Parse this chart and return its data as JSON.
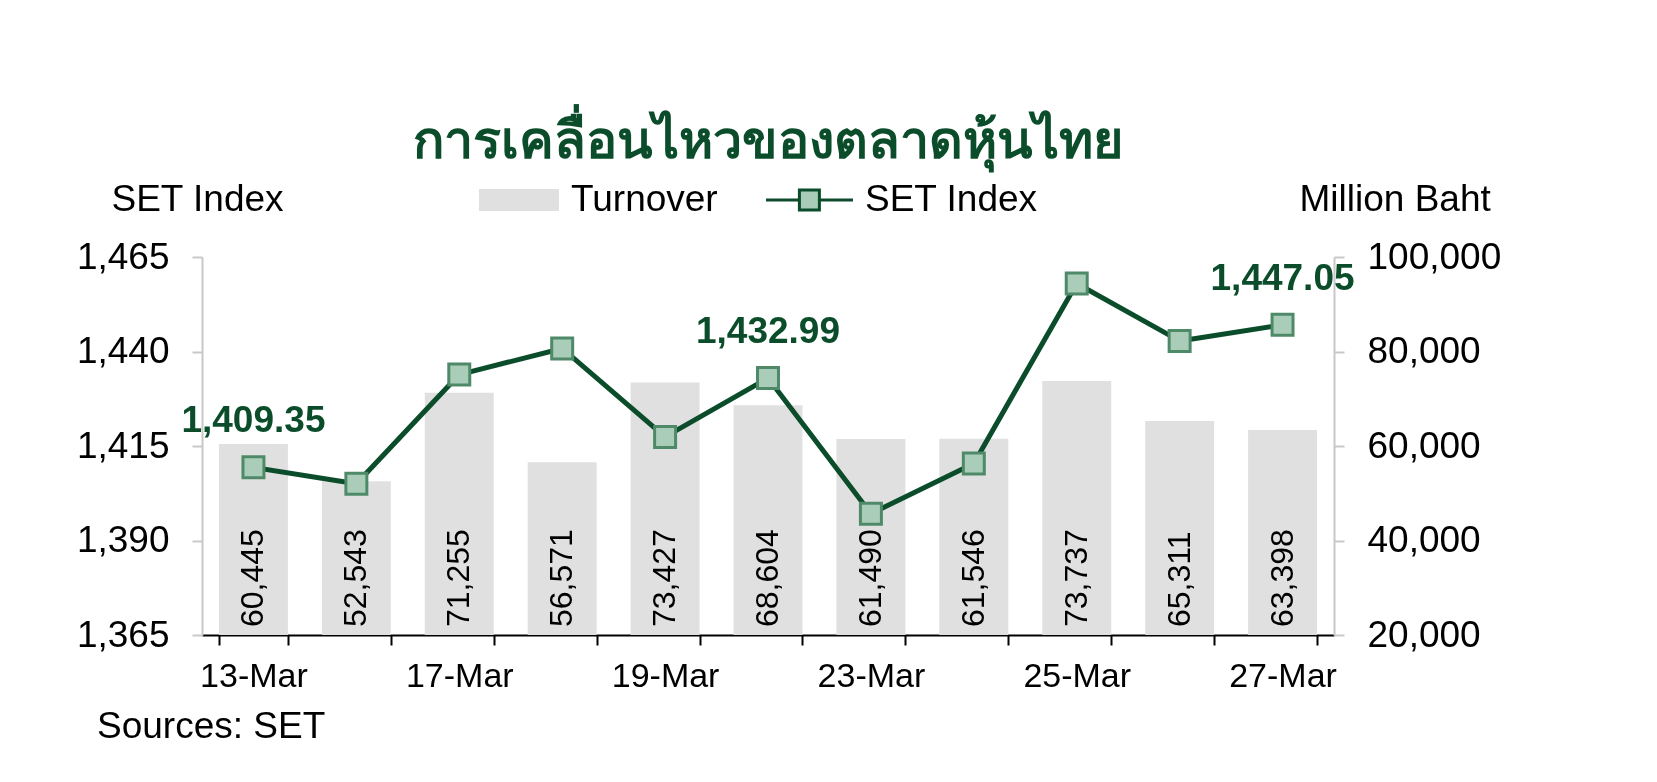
{
  "chart_data": {
    "type": "bar",
    "title": "การเคลื่อนไหวของตลาดหุ้นไทย",
    "ylabel": "SET Index",
    "y2label": "Million Baht",
    "annotations": [
      "Sources: SET"
    ],
    "categories": [
      "13-Mar",
      null,
      "17-Mar",
      null,
      "19-Mar",
      null,
      "23-Mar",
      null,
      "25-Mar",
      null,
      "27-Mar"
    ],
    "series": [
      {
        "name": "Turnover",
        "type": "bar",
        "axis": "y2",
        "color": "#e0e0e0",
        "values": [
          60445,
          52543,
          71255,
          56571,
          73427,
          68604,
          61490,
          61546,
          73737,
          65311,
          63398
        ],
        "value_labels": [
          "60,445",
          "52,543",
          "71,255",
          "56,571",
          "73,427",
          "68,604",
          "61,490",
          "61,546",
          "73,737",
          "65,311",
          "63,398"
        ]
      },
      {
        "name": "SET Index",
        "type": "line",
        "axis": "y",
        "color": "#0b4d2b",
        "values": [
          1409.35,
          1405.0,
          1433.9,
          1440.8,
          1417.4,
          1432.99,
          1397.1,
          1410.4,
          1458.0,
          1442.8,
          1447.05
        ],
        "value_labels": [
          "1,409.35",
          null,
          null,
          null,
          null,
          "1,432.99",
          null,
          null,
          null,
          null,
          "1,447.05"
        ]
      }
    ],
    "ylim": [
      1365,
      1465
    ],
    "yticks": [
      {
        "value": 1365,
        "label": "1,365"
      },
      {
        "value": 1390,
        "label": "1,390"
      },
      {
        "value": 1415,
        "label": "1,415"
      },
      {
        "value": 1440,
        "label": "1,440"
      },
      {
        "value": 1465,
        "label": "1,465"
      }
    ],
    "y2lim": [
      20000,
      100000
    ],
    "y2ticks": [
      {
        "value": 20000,
        "label": "20,000"
      },
      {
        "value": 40000,
        "label": "40,000"
      },
      {
        "value": 60000,
        "label": "60,000"
      },
      {
        "value": 80000,
        "label": "80,000"
      },
      {
        "value": 100000,
        "label": "100,000"
      }
    ],
    "legend": "top",
    "marker": "square",
    "line_style": "solid"
  }
}
